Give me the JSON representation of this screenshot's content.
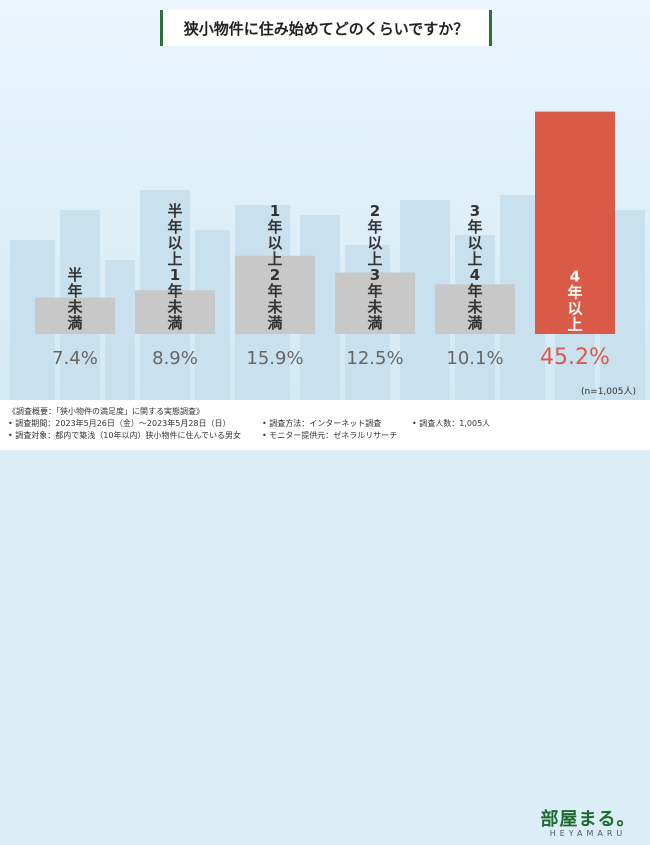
{
  "title": "狭小物件に住み始めてどのくらいですか？",
  "colors": {
    "bar": "#c8c8c8",
    "highlight": "#d95b47",
    "value": "#666666",
    "highlight_value": "#d95b47"
  },
  "chart_data": {
    "type": "bar",
    "categories": [
      "半年未満",
      "半年以上1年未満",
      "1年以上2年未満",
      "2年以上3年未満",
      "3年以上4年未満",
      "4年以上"
    ],
    "values": [
      7.4,
      8.9,
      15.9,
      12.5,
      10.1,
      45.2
    ],
    "value_labels": [
      "7.4%",
      "8.9%",
      "15.9%",
      "12.5%",
      "10.1%",
      "45.2%"
    ],
    "highlight_index": 5,
    "title": "狭小物件に住み始めてどのくらいですか？",
    "xlabel": "",
    "ylabel": "",
    "ylim": [
      0,
      50
    ],
    "grid": false
  },
  "sample": "(n=1,005人)",
  "notes": {
    "overview": "《調査概要：「狭小物件の満足度」に関する実態調査》",
    "period": "• 調査期間：2023年5月26日（金）〜2023年5月28日（日）",
    "target": "• 調査対象：都内で築浅（10年以内）狭小物件に住んでいる男女",
    "method": "• 調査方法：インターネット調査",
    "count": "• 調査人数：1,005人",
    "monitor": "• モニター提供元：ゼネラルリサーチ"
  },
  "logo": {
    "main": "部屋まる。",
    "sub": "HEYAMARU"
  }
}
